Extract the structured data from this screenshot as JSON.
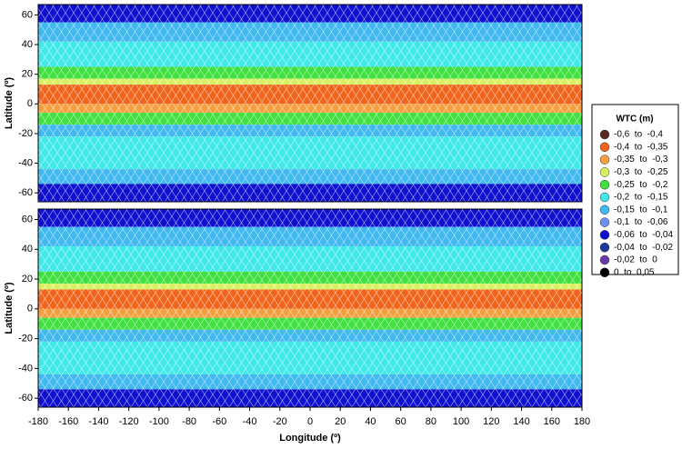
{
  "chart_data": [
    {
      "type": "map",
      "ylabel": "Latitude (º)",
      "xlim": [
        -180,
        180
      ],
      "ylim": [
        -66,
        67
      ],
      "yticks": [
        -60,
        -40,
        -20,
        0,
        20,
        40,
        60
      ],
      "grid": false
    },
    {
      "type": "map",
      "ylabel": "Latitude (º)",
      "xlabel": "Longitude (º)",
      "xlim": [
        -180,
        180
      ],
      "ylim": [
        -66,
        67
      ],
      "yticks": [
        -60,
        -40,
        -20,
        0,
        20,
        40,
        60
      ],
      "xticks": [
        -180,
        -160,
        -140,
        -120,
        -100,
        -80,
        -60,
        -40,
        -20,
        0,
        20,
        40,
        60,
        80,
        100,
        120,
        140,
        160,
        180
      ],
      "grid": false
    }
  ],
  "legend": {
    "title": "WTC (m)",
    "items": [
      {
        "label": "-0,6  to  -0,4",
        "color": "#5a2a22"
      },
      {
        "label": "-0,4  to  -0,35",
        "color": "#f0641e"
      },
      {
        "label": "-0,35  to  -0,3",
        "color": "#f5a040"
      },
      {
        "label": "-0,3  to  -0,25",
        "color": "#d8f060"
      },
      {
        "label": "-0,25  to  -0,2",
        "color": "#40e040"
      },
      {
        "label": "-0,2  to  -0,15",
        "color": "#40e8e8"
      },
      {
        "label": "-0,15  to  -0,1",
        "color": "#40b8f0"
      },
      {
        "label": "-0,1  to  -0,06",
        "color": "#7090f0"
      },
      {
        "label": "-0,06  to  -0,04",
        "color": "#1010d0"
      },
      {
        "label": "-0,04  to  -0,02",
        "color": "#1a3a9a"
      },
      {
        "label": "-0,02  to  0",
        "color": "#6a3aa8"
      },
      {
        "label": "0  to  0,05",
        "color": "#000000"
      }
    ]
  }
}
